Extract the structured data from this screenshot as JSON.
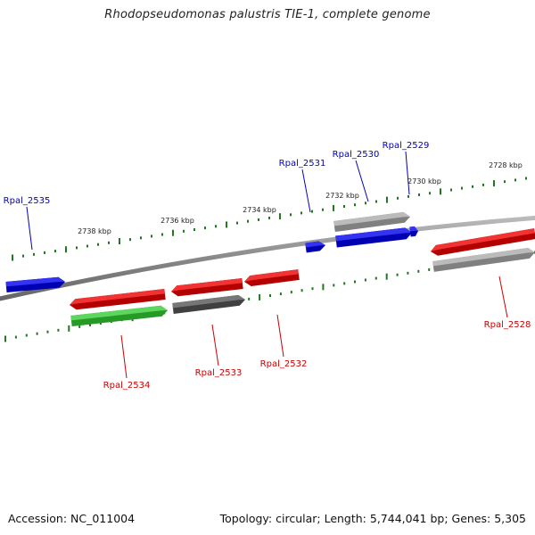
{
  "title": "Rhodopseudomonas palustris TIE-1, complete genome",
  "footer": {
    "accession": "Accession: NC_011004",
    "summary": "Topology: circular; Length: 5,744,041 bp; Genes: 5,305"
  },
  "colors": {
    "blue": "#0000ee",
    "red": "#ee0000",
    "green": "#33cc33",
    "lightgray": "#aaaaaa",
    "darkgray": "#555555",
    "tick_green": "#227722",
    "label_blue": "#0000bb",
    "label_red": "#cc0000"
  },
  "ruler": [
    {
      "label": "2738 kbp"
    },
    {
      "label": "2736 kbp"
    },
    {
      "label": "2734 kbp"
    },
    {
      "label": "2732 kbp"
    },
    {
      "label": "2730 kbp"
    },
    {
      "label": "2728 kbp"
    }
  ],
  "genes": [
    {
      "name": "Rpal_2535",
      "strand": "forward",
      "color": "blue"
    },
    {
      "name": "Rpal_2531",
      "strand": "forward",
      "color": "blue"
    },
    {
      "name": "Rpal_2530",
      "strand": "forward",
      "color": "lightgray"
    },
    {
      "name": "Rpal_2529",
      "strand": "forward",
      "color": "blue"
    },
    {
      "name": "Rpal_2534",
      "strand": "reverse",
      "color": "red"
    },
    {
      "name": "Rpal_2533",
      "strand": "reverse",
      "color": "red"
    },
    {
      "name": "Rpal_2532",
      "strand": "reverse",
      "color": "red"
    },
    {
      "name": "Rpal_2528",
      "strand": "reverse",
      "color": "red"
    }
  ]
}
